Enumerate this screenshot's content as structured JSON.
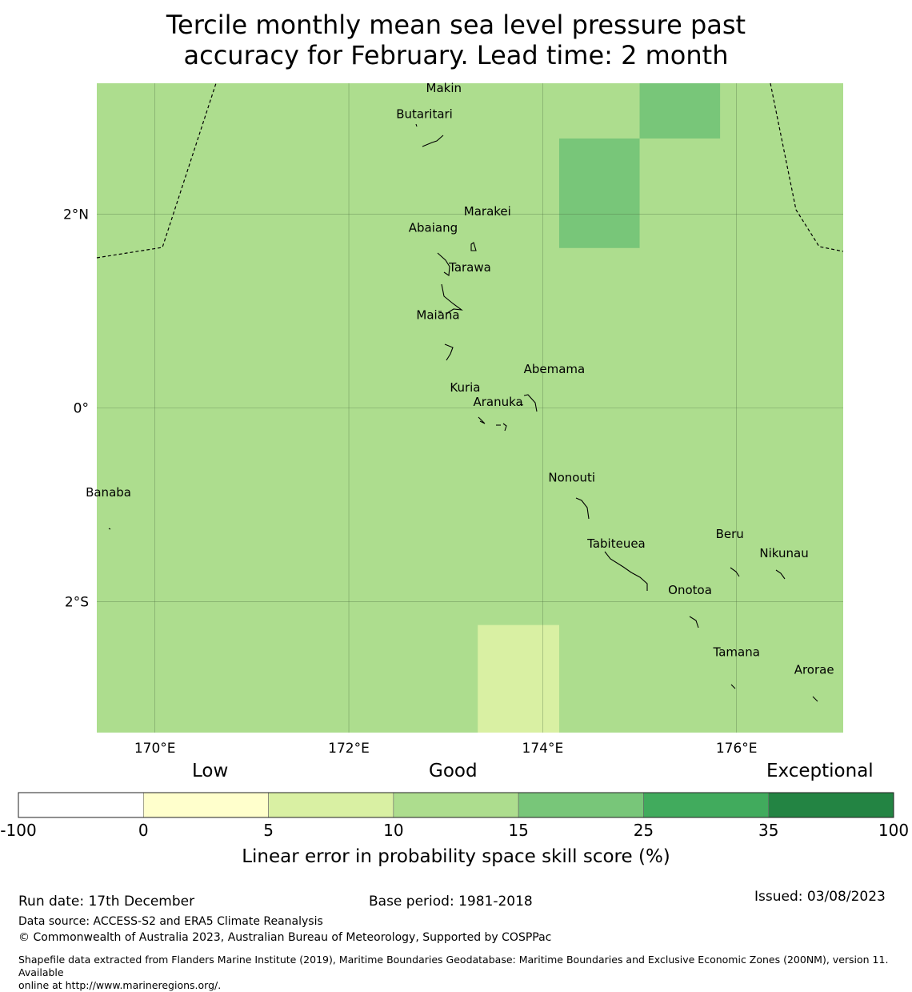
{
  "title": {
    "line1": "Tercile monthly mean sea level pressure past",
    "line2": "accuracy for February. Lead time: 2 month"
  },
  "map": {
    "lon_range": [
      169.4,
      177.1
    ],
    "lat_range": [
      -3.35,
      3.35
    ],
    "lon_ticks": [
      {
        "value": 170,
        "label": "170°E"
      },
      {
        "value": 172,
        "label": "172°E"
      },
      {
        "value": 174,
        "label": "174°E"
      },
      {
        "value": 176,
        "label": "176°E"
      }
    ],
    "lat_ticks": [
      {
        "value": 2,
        "label": "2°N"
      },
      {
        "value": 0,
        "label": "0°"
      },
      {
        "value": -2,
        "label": "2°S"
      }
    ],
    "background_category": "10-15",
    "cells": [
      {
        "lon": [
          175.0,
          175.83
        ],
        "lat": [
          2.78,
          3.35
        ],
        "category": "15-25"
      },
      {
        "lon": [
          174.17,
          175.0
        ],
        "lat": [
          1.65,
          2.78
        ],
        "category": "15-25"
      },
      {
        "lon": [
          173.33,
          174.17
        ],
        "lat": [
          -3.35,
          -2.24
        ],
        "category": "5-10"
      }
    ],
    "islands": [
      {
        "name": "Makin",
        "lon": 172.98,
        "lat": 3.3
      },
      {
        "name": "Butaritari",
        "lon": 172.78,
        "lat": 3.03
      },
      {
        "name": "Marakei",
        "lon": 173.43,
        "lat": 2.03
      },
      {
        "name": "Abaiang",
        "lon": 172.87,
        "lat": 1.86
      },
      {
        "name": "Tarawa",
        "lon": 173.25,
        "lat": 1.45
      },
      {
        "name": "Maiana",
        "lon": 172.92,
        "lat": 0.96
      },
      {
        "name": "Abemama",
        "lon": 174.12,
        "lat": 0.4
      },
      {
        "name": "Kuria",
        "lon": 173.2,
        "lat": 0.21
      },
      {
        "name": "Aranuka",
        "lon": 173.54,
        "lat": 0.06
      },
      {
        "name": "Nonouti",
        "lon": 174.3,
        "lat": -0.72
      },
      {
        "name": "Banaba",
        "lon": 169.52,
        "lat": -0.87
      },
      {
        "name": "Beru",
        "lon": 175.93,
        "lat": -1.3
      },
      {
        "name": "Tabiteuea",
        "lon": 174.76,
        "lat": -1.4
      },
      {
        "name": "Nikunau",
        "lon": 176.49,
        "lat": -1.5
      },
      {
        "name": "Onotoa",
        "lon": 175.52,
        "lat": -1.88
      },
      {
        "name": "Tamana",
        "lon": 176.0,
        "lat": -2.52
      },
      {
        "name": "Arorae",
        "lon": 176.8,
        "lat": -2.7
      }
    ]
  },
  "colorbar": {
    "headers": {
      "low": "Low",
      "good": "Good",
      "exceptional": "Exceptional"
    },
    "bins": [
      {
        "from": "-100",
        "to": "0",
        "color": "#ffffff"
      },
      {
        "from": "0",
        "to": "5",
        "color": "#ffffcc"
      },
      {
        "from": "5",
        "to": "10",
        "color": "#d9f0a3"
      },
      {
        "from": "10",
        "to": "15",
        "color": "#addd8e"
      },
      {
        "from": "15",
        "to": "25",
        "color": "#78c679"
      },
      {
        "from": "25",
        "to": "35",
        "color": "#41ab5d"
      },
      {
        "from": "35",
        "to": "100",
        "color": "#238443"
      }
    ],
    "tick_labels": [
      "-100",
      "0",
      "5",
      "10",
      "15",
      "25",
      "35",
      "100"
    ],
    "label": "Linear error in probability space skill score (%)"
  },
  "footer": {
    "run_date": "Run date: 17th December",
    "base_period": "Base period: 1981-2018",
    "issued": "Issued: 03/08/2023",
    "data_source": "Data source: ACCESS-S2 and ERA5 Climate Reanalysis",
    "copyright": "© Commonwealth of Australia 2023, Australian Bureau of Meteorology, Supported by COSPPac",
    "shapefile_line1": "Shapefile data extracted from Flanders Marine Institute (2019), Maritime Boundaries Geodatabase: Maritime Boundaries and Exclusive Economic Zones (200NM), version 11. Available",
    "shapefile_line2": "online at http://www.marineregions.org/."
  }
}
